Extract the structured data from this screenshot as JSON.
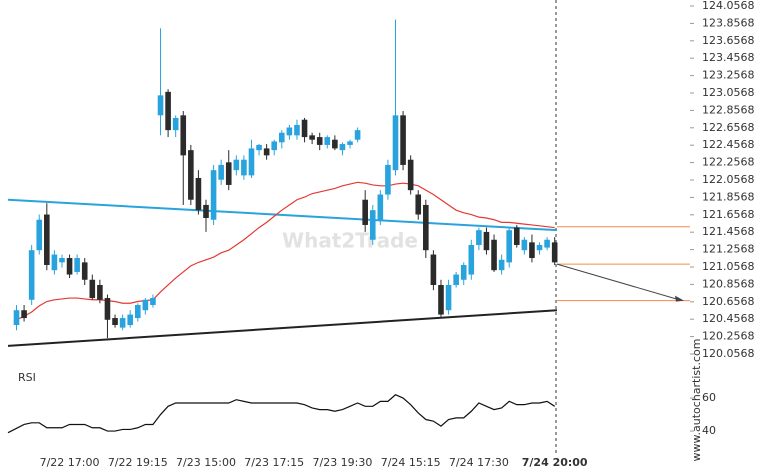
{
  "chart_data": {
    "type": "candlestick",
    "watermark": "What2Trade",
    "credit": "www.autochartist.com",
    "categories": [
      null,
      null,
      null,
      null,
      null,
      null,
      null,
      "7/22 17:00",
      null,
      null,
      null,
      null,
      null,
      null,
      null,
      null,
      "7/22 19:15",
      null,
      null,
      null,
      null,
      null,
      null,
      null,
      null,
      "7/23 15:00",
      null,
      null,
      null,
      null,
      null,
      null,
      null,
      null,
      "7/23 17:15",
      null,
      null,
      null,
      null,
      null,
      null,
      null,
      null,
      "7/23 19:30",
      null,
      null,
      null,
      null,
      null,
      null,
      null,
      null,
      "7/24 15:15",
      null,
      null,
      null,
      null,
      null,
      null,
      null,
      null,
      "7/24 17:30",
      null,
      null,
      null,
      null,
      null,
      null,
      null,
      null,
      null,
      "7/24 20:00"
    ],
    "up_color": "#29a3dd",
    "down_color": "#2b2b2b",
    "open": [
      120.39,
      120.56,
      120.68,
      121.25,
      121.66,
      121.02,
      121.11,
      121.16,
      121.0,
      121.11,
      120.91,
      120.85,
      120.7,
      120.47,
      120.36,
      120.39,
      120.47,
      120.56,
      120.62,
      122.8,
      123.07,
      122.63,
      122.8,
      122.4,
      122.08,
      121.77,
      121.6,
      122.06,
      122.26,
      122.17,
      122.11,
      122.11,
      122.4,
      122.42,
      122.4,
      122.49,
      122.57,
      122.57,
      122.75,
      122.57,
      122.55,
      122.46,
      122.52,
      122.4,
      122.46,
      122.52,
      121.83,
      121.37,
      121.6,
      121.89,
      122.17,
      122.8,
      122.29,
      121.89,
      121.77,
      121.2,
      120.85,
      120.56,
      120.85,
      120.91,
      120.97,
      121.31,
      121.46,
      121.37,
      121.02,
      121.11,
      121.51,
      121.25,
      121.34,
      121.25,
      121.28,
      121.34
    ],
    "high": [
      120.62,
      120.62,
      121.31,
      121.66,
      121.79,
      121.25,
      121.2,
      121.2,
      121.2,
      121.16,
      120.97,
      120.91,
      120.74,
      120.51,
      120.51,
      120.56,
      120.64,
      120.7,
      120.74,
      123.8,
      123.1,
      122.8,
      122.85,
      122.46,
      122.17,
      121.83,
      122.23,
      122.29,
      122.4,
      122.34,
      122.34,
      122.52,
      122.47,
      122.47,
      122.52,
      122.63,
      122.69,
      122.75,
      122.77,
      122.6,
      122.6,
      122.57,
      122.57,
      122.49,
      122.52,
      122.66,
      121.94,
      121.77,
      121.94,
      122.29,
      123.9,
      122.85,
      122.34,
      121.94,
      121.83,
      121.25,
      120.91,
      120.91,
      121.0,
      121.11,
      121.37,
      121.51,
      121.51,
      121.43,
      121.2,
      121.51,
      121.54,
      121.4,
      121.43,
      121.34,
      121.4,
      121.4
    ],
    "low": [
      120.33,
      120.43,
      120.62,
      121.2,
      121.02,
      120.97,
      121.05,
      120.93,
      120.97,
      120.85,
      120.68,
      120.64,
      120.24,
      120.36,
      120.33,
      120.36,
      120.43,
      120.51,
      120.59,
      122.57,
      122.55,
      122.55,
      121.77,
      121.77,
      121.66,
      121.46,
      121.54,
      122.0,
      121.94,
      122.11,
      122.06,
      122.08,
      122.34,
      122.29,
      122.34,
      122.42,
      122.52,
      122.52,
      122.49,
      122.47,
      122.4,
      122.42,
      122.4,
      122.34,
      122.42,
      122.49,
      121.46,
      121.31,
      121.54,
      121.83,
      122.11,
      122.17,
      121.89,
      121.6,
      121.16,
      120.79,
      120.47,
      120.51,
      120.82,
      120.85,
      120.91,
      121.25,
      121.2,
      121.0,
      120.97,
      121.05,
      121.28,
      121.2,
      121.11,
      121.2,
      121.25,
      121.08
    ],
    "close": [
      120.56,
      120.47,
      121.25,
      121.6,
      121.08,
      121.2,
      121.16,
      120.97,
      121.16,
      120.91,
      120.7,
      120.68,
      120.45,
      120.39,
      120.47,
      120.51,
      120.62,
      120.68,
      120.7,
      123.03,
      122.63,
      122.77,
      122.34,
      121.83,
      121.71,
      121.62,
      122.17,
      122.23,
      122.0,
      122.29,
      122.29,
      122.42,
      122.46,
      122.34,
      122.5,
      122.6,
      122.66,
      122.69,
      122.55,
      122.52,
      122.46,
      122.55,
      122.42,
      122.47,
      122.5,
      122.63,
      121.54,
      121.71,
      121.89,
      122.23,
      122.8,
      122.23,
      121.94,
      121.66,
      121.25,
      120.85,
      120.51,
      120.85,
      120.97,
      121.08,
      121.31,
      121.48,
      121.25,
      121.02,
      121.14,
      121.48,
      121.31,
      121.37,
      121.16,
      121.31,
      121.37,
      121.11
    ],
    "moving_average": {
      "color": "#e53935",
      "values": [
        120.45,
        120.49,
        120.54,
        120.61,
        120.66,
        120.68,
        120.69,
        120.7,
        120.7,
        120.69,
        120.68,
        120.68,
        120.67,
        120.66,
        120.64,
        120.64,
        120.66,
        120.67,
        120.68,
        120.77,
        120.85,
        120.93,
        121.0,
        121.07,
        121.11,
        121.14,
        121.17,
        121.22,
        121.25,
        121.31,
        121.37,
        121.44,
        121.51,
        121.57,
        121.64,
        121.71,
        121.77,
        121.83,
        121.86,
        121.9,
        121.92,
        121.94,
        121.96,
        121.99,
        122.01,
        122.03,
        122.02,
        122.0,
        121.99,
        121.99,
        122.01,
        122.02,
        122.01,
        121.99,
        121.94,
        121.89,
        121.83,
        121.77,
        121.71,
        121.68,
        121.66,
        121.63,
        121.62,
        121.6,
        121.57,
        121.57,
        121.56,
        121.55,
        121.54,
        121.53,
        121.52,
        121.51
      ]
    },
    "trendlines": [
      {
        "color": "#29a3dd",
        "values": [
          121.83,
          121.48
        ]
      },
      {
        "color": "#222222",
        "values": [
          120.15,
          120.56
        ]
      }
    ],
    "levels": {
      "color": "#f08a4b",
      "values": [
        121.52,
        121.09,
        120.67
      ]
    },
    "ylim": [
      120.0568,
      124.0568
    ],
    "yticks": [
      120.0568,
      120.2568,
      120.4568,
      120.6568,
      120.8568,
      121.0568,
      121.2568,
      121.4568,
      121.6568,
      121.8568,
      122.0568,
      122.2568,
      122.4568,
      122.6568,
      122.8568,
      123.0568,
      123.2568,
      123.4568,
      123.6568,
      123.8568,
      124.0568
    ],
    "rsi": {
      "label": "RSI",
      "color": "#111111",
      "ylim": [
        25.5,
        77
      ],
      "yticks": [
        60,
        40
      ],
      "values": [
        39,
        44,
        45,
        45,
        42,
        42,
        42,
        44,
        44,
        44,
        42,
        42,
        40,
        40,
        41,
        41,
        42,
        44,
        44,
        50,
        55,
        57,
        57,
        57,
        57,
        57,
        57,
        57,
        57,
        59,
        58,
        57,
        57,
        57,
        57,
        57,
        57,
        57,
        56,
        54,
        53,
        53,
        52,
        53,
        55,
        57,
        55,
        55,
        58,
        58,
        62,
        60,
        56,
        51,
        47,
        46,
        43,
        47,
        48,
        48,
        52,
        57,
        55,
        53,
        54,
        58,
        56,
        56,
        57,
        57,
        58,
        55
      ]
    }
  }
}
